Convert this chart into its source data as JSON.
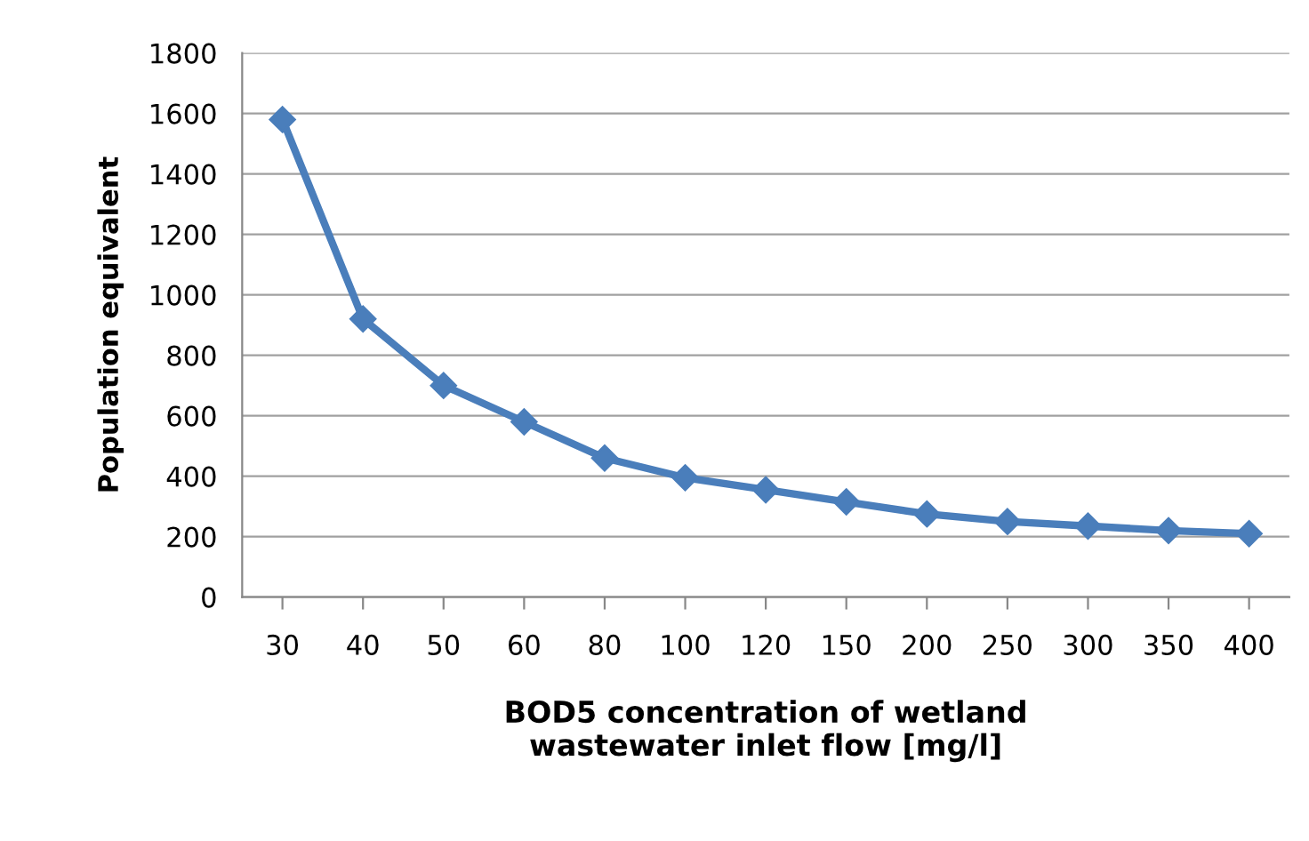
{
  "chart_data": {
    "type": "line",
    "xlabel": "BOD5 concentration of wetland\nwastewater inlet flow [mg/l]",
    "ylabel": "Population equivalent",
    "categories": [
      "30",
      "40",
      "50",
      "60",
      "80",
      "100",
      "120",
      "150",
      "200",
      "250",
      "300",
      "350",
      "400"
    ],
    "series": [
      {
        "color": "#4a7ebb",
        "values": [
          1580,
          920,
          700,
          580,
          460,
          395,
          355,
          315,
          275,
          250,
          235,
          220,
          210
        ]
      }
    ],
    "ylim": [
      0,
      1800
    ],
    "yticks": [
      0,
      200,
      400,
      600,
      800,
      1000,
      1200,
      1400,
      1600,
      1800
    ],
    "grid": "y",
    "marker": "diamond",
    "line_style": "solid",
    "legend": false
  }
}
